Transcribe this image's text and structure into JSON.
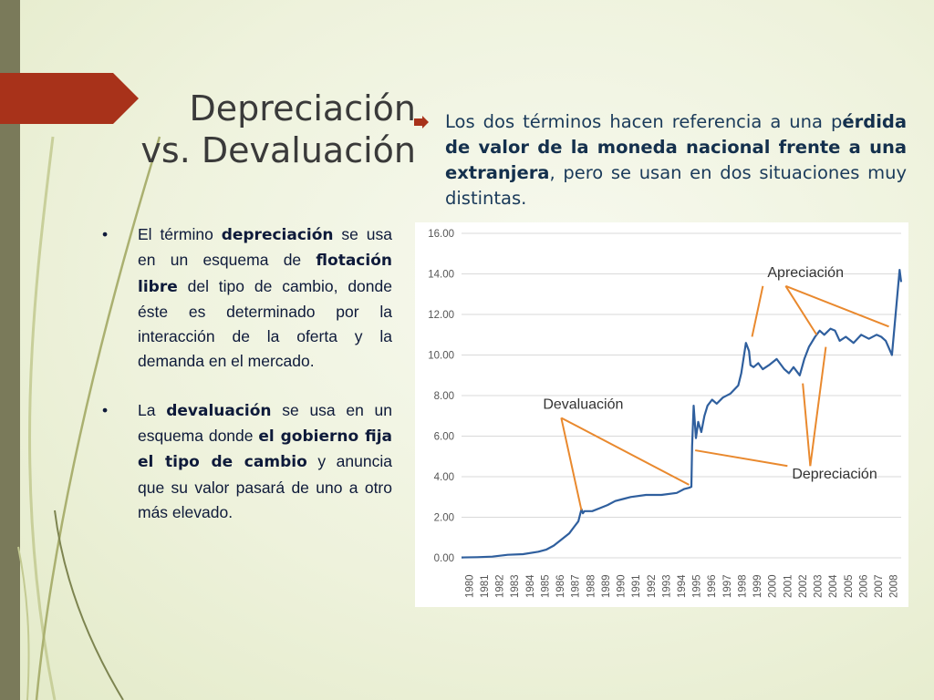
{
  "colors": {
    "accent": "#a8321a",
    "bar": "#7a7a5a",
    "line": "#2f5f9e",
    "annotation": "#e9892e"
  },
  "title": {
    "line1": "Depreciación",
    "line2": "vs. Devaluación"
  },
  "intro": {
    "p1": "Los dos términos hacen referencia a una p",
    "bold": "érdida de valor de la moneda nacional frente a una extranjera",
    "p2": ", pero se usan en dos situaciones muy distintas."
  },
  "bullets": [
    {
      "marker": "•",
      "parts": [
        {
          "text": "El término ",
          "bold": false
        },
        {
          "text": "depreciación",
          "bold": true
        },
        {
          "text": " se usa en un esquema de ",
          "bold": false
        },
        {
          "text": "flotación libre",
          "bold": true
        },
        {
          "text": " del tipo de cambio, donde éste es determinado por la interacción de la oferta y la demanda en el mercado.",
          "bold": false
        }
      ]
    },
    {
      "marker": "•",
      "parts": [
        {
          "text": "La ",
          "bold": false
        },
        {
          "text": "devaluación",
          "bold": true
        },
        {
          "text": " se usa en un esquema donde ",
          "bold": false
        },
        {
          "text": "el gobierno fija el tipo de cambio",
          "bold": true
        },
        {
          "text": " y anuncia que su valor pasará de uno a otro más elevado.",
          "bold": false
        }
      ]
    }
  ],
  "chart_data": {
    "type": "line",
    "ylim": [
      0,
      16
    ],
    "yticks": [
      "0.00",
      "2.00",
      "4.00",
      "6.00",
      "8.00",
      "10.00",
      "12.00",
      "14.00",
      "16.00"
    ],
    "xlim": [
      1980,
      2008.6
    ],
    "xticks": [
      "1980",
      "1981",
      "1982",
      "1983",
      "1984",
      "1985",
      "1986",
      "1987",
      "1988",
      "1989",
      "1990",
      "1991",
      "1992",
      "1993",
      "1994",
      "1995",
      "1996",
      "1997",
      "1998",
      "1999",
      "2000",
      "2001",
      "2002",
      "2003",
      "2004",
      "2005",
      "2006",
      "2007",
      "2008"
    ],
    "grid": true,
    "series": [
      {
        "x": [
          1980,
          1981,
          1982,
          1983,
          1984,
          1985,
          1985.5,
          1986,
          1986.5,
          1987,
          1987.3,
          1987.6,
          1987.8,
          1987.9,
          1988,
          1988.5,
          1989,
          1989.5,
          1990,
          1990.5,
          1991,
          1992,
          1993,
          1994,
          1994.5,
          1994.8,
          1994.95,
          1995,
          1995.1,
          1995.25,
          1995.4,
          1995.6,
          1995.8,
          1996,
          1996.3,
          1996.6,
          1997,
          1997.5,
          1998,
          1998.2,
          1998.5,
          1998.7,
          1998.8,
          1999,
          1999.3,
          1999.6,
          2000,
          2000.5,
          2001,
          2001.3,
          2001.6,
          2002,
          2002.3,
          2002.6,
          2003,
          2003.3,
          2003.6,
          2004,
          2004.3,
          2004.6,
          2005,
          2005.5,
          2006,
          2006.5,
          2007,
          2007.3,
          2007.6,
          2008,
          2008.3,
          2008.5,
          2008.6
        ],
        "y": [
          0.02,
          0.03,
          0.06,
          0.15,
          0.18,
          0.3,
          0.4,
          0.6,
          0.9,
          1.2,
          1.5,
          1.8,
          2.4,
          2.2,
          2.3,
          2.3,
          2.45,
          2.6,
          2.8,
          2.9,
          3.0,
          3.1,
          3.1,
          3.2,
          3.4,
          3.45,
          3.5,
          5.5,
          7.5,
          5.9,
          6.7,
          6.2,
          7.0,
          7.5,
          7.8,
          7.6,
          7.9,
          8.1,
          8.5,
          9.1,
          10.6,
          10.2,
          9.5,
          9.4,
          9.6,
          9.3,
          9.5,
          9.8,
          9.3,
          9.1,
          9.4,
          9.0,
          9.8,
          10.4,
          10.9,
          11.2,
          11.0,
          11.3,
          11.2,
          10.7,
          10.9,
          10.6,
          11.0,
          10.8,
          11.0,
          10.9,
          10.7,
          10.0,
          12.5,
          14.2,
          13.6
        ]
      }
    ],
    "annotations": [
      {
        "text": "Apreciación",
        "at": [
          1999.9,
          13.85
        ],
        "pointers": [
          [
            1998.9,
            10.9
          ],
          [
            2003.1,
            11.0
          ],
          [
            2007.8,
            11.4
          ]
        ]
      },
      {
        "text": "Devaluación",
        "at": [
          1985.3,
          7.35
        ],
        "pointers": [
          [
            1987.8,
            2.35
          ],
          [
            1994.8,
            3.6
          ]
        ]
      },
      {
        "text": "Depreciación",
        "at": [
          2001.5,
          3.9
        ],
        "pointers": [
          [
            1995.2,
            5.3
          ],
          [
            2002.2,
            8.6
          ],
          [
            2003.7,
            10.4
          ]
        ]
      }
    ]
  }
}
